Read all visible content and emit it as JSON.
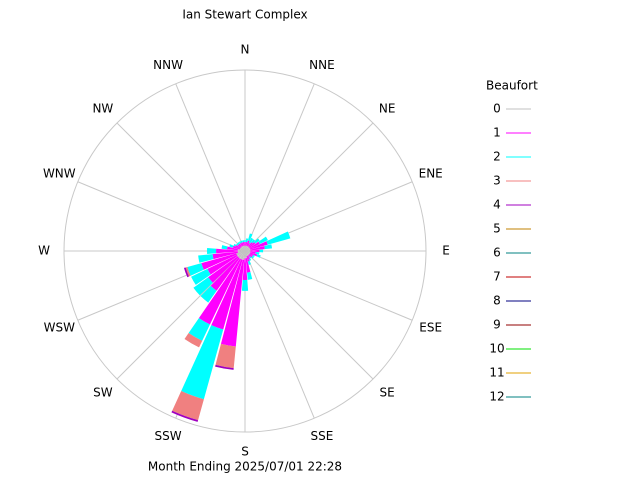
{
  "chart_data": {
    "type": "windrose",
    "title": "Ian Stewart Complex",
    "subtitle": "Month Ending 2025/07/01 22:28",
    "legend_title": "Beaufort",
    "direction_labels": [
      "N",
      "NNE",
      "NE",
      "ENE",
      "E",
      "ESE",
      "SE",
      "SSE",
      "S",
      "SSW",
      "SW",
      "WSW",
      "W",
      "WNW",
      "NW",
      "NNW"
    ],
    "rlim": [
      0,
      100
    ],
    "x": [
      0,
      10,
      20,
      30,
      40,
      50,
      60,
      70,
      80,
      90,
      100,
      110,
      120,
      130,
      140,
      150,
      160,
      170,
      180,
      190,
      200,
      210,
      220,
      230,
      240,
      250,
      260,
      270,
      280,
      290,
      300,
      310,
      320,
      330,
      340,
      350
    ],
    "series": [
      {
        "name": "0",
        "color": "#c0c0c0",
        "values": [
          3,
          3,
          3,
          3,
          3,
          3,
          3,
          3,
          3,
          3,
          3,
          3,
          3,
          3,
          3,
          3,
          3,
          4,
          4,
          5,
          5,
          5,
          5,
          5,
          5,
          5,
          4,
          4,
          4,
          3,
          3,
          3,
          3,
          3,
          3,
          3
        ]
      },
      {
        "name": "1",
        "color": "#ff00ff",
        "values": [
          2,
          2,
          3,
          2,
          3,
          4,
          6,
          10,
          8,
          5,
          3,
          4,
          2,
          2,
          1,
          2,
          3,
          8,
          12,
          48,
          40,
          40,
          22,
          20,
          18,
          20,
          14,
          12,
          6,
          4,
          3,
          2,
          2,
          2,
          2,
          2
        ]
      },
      {
        "name": "2",
        "color": "#00ffff",
        "values": [
          1,
          2,
          4,
          3,
          2,
          3,
          5,
          13,
          4,
          2,
          2,
          2,
          1,
          1,
          1,
          1,
          2,
          4,
          6,
          0,
          40,
          10,
          8,
          10,
          10,
          8,
          8,
          5,
          3,
          2,
          1,
          1,
          1,
          1,
          1,
          1
        ]
      },
      {
        "name": "3",
        "color": "#f08080",
        "values": [
          0,
          0,
          0,
          0,
          0,
          0,
          0,
          0,
          0,
          0,
          0,
          0,
          0,
          0,
          0,
          0,
          0,
          0,
          0,
          12,
          12,
          4,
          0,
          0,
          0,
          1,
          0,
          0,
          0,
          0,
          0,
          0,
          0,
          0,
          0,
          0
        ]
      },
      {
        "name": "4",
        "color": "#a000c0",
        "values": [
          0,
          0,
          0,
          0,
          0,
          0,
          0,
          0,
          0,
          0,
          0,
          0,
          0,
          0,
          0,
          0,
          0,
          0,
          0,
          1,
          1,
          0,
          0,
          0,
          0,
          1,
          0,
          0,
          0,
          0,
          0,
          0,
          0,
          0,
          0,
          0
        ]
      },
      {
        "name": "5",
        "color": "#c08000",
        "values": [
          0,
          0,
          0,
          0,
          0,
          0,
          0,
          0,
          0,
          0,
          0,
          0,
          0,
          0,
          0,
          0,
          0,
          0,
          0,
          0,
          0,
          0,
          0,
          0,
          0,
          0,
          0,
          0,
          0,
          0,
          0,
          0,
          0,
          0,
          0,
          0
        ]
      },
      {
        "name": "6",
        "color": "#008080",
        "values": [
          0,
          0,
          0,
          0,
          0,
          0,
          0,
          0,
          0,
          0,
          0,
          0,
          0,
          0,
          0,
          0,
          0,
          0,
          0,
          0,
          0,
          0,
          0,
          0,
          0,
          0,
          0,
          0,
          0,
          0,
          0,
          0,
          0,
          0,
          0,
          0
        ]
      },
      {
        "name": "7",
        "color": "#c00000",
        "values": [
          0,
          0,
          0,
          0,
          0,
          0,
          0,
          0,
          0,
          0,
          0,
          0,
          0,
          0,
          0,
          0,
          0,
          0,
          0,
          0,
          0,
          0,
          0,
          0,
          0,
          0,
          0,
          0,
          0,
          0,
          0,
          0,
          0,
          0,
          0,
          0
        ]
      },
      {
        "name": "8",
        "color": "#000080",
        "values": [
          0,
          0,
          0,
          0,
          0,
          0,
          0,
          0,
          0,
          0,
          0,
          0,
          0,
          0,
          0,
          0,
          0,
          0,
          0,
          0,
          0,
          0,
          0,
          0,
          0,
          0,
          0,
          0,
          0,
          0,
          0,
          0,
          0,
          0,
          0,
          0
        ]
      },
      {
        "name": "9",
        "color": "#900000",
        "values": [
          0,
          0,
          0,
          0,
          0,
          0,
          0,
          0,
          0,
          0,
          0,
          0,
          0,
          0,
          0,
          0,
          0,
          0,
          0,
          0,
          0,
          0,
          0,
          0,
          0,
          0,
          0,
          0,
          0,
          0,
          0,
          0,
          0,
          0,
          0,
          0
        ]
      },
      {
        "name": "10",
        "color": "#00e000",
        "values": [
          0,
          0,
          0,
          0,
          0,
          0,
          0,
          0,
          0,
          0,
          0,
          0,
          0,
          0,
          0,
          0,
          0,
          0,
          0,
          0,
          0,
          0,
          0,
          0,
          0,
          0,
          0,
          0,
          0,
          0,
          0,
          0,
          0,
          0,
          0,
          0
        ]
      },
      {
        "name": "11",
        "color": "#e0a000",
        "values": [
          0,
          0,
          0,
          0,
          0,
          0,
          0,
          0,
          0,
          0,
          0,
          0,
          0,
          0,
          0,
          0,
          0,
          0,
          0,
          0,
          0,
          0,
          0,
          0,
          0,
          0,
          0,
          0,
          0,
          0,
          0,
          0,
          0,
          0,
          0,
          0
        ]
      },
      {
        "name": "12",
        "color": "#008080",
        "values": [
          0,
          0,
          0,
          0,
          0,
          0,
          0,
          0,
          0,
          0,
          0,
          0,
          0,
          0,
          0,
          0,
          0,
          0,
          0,
          0,
          0,
          0,
          0,
          0,
          0,
          0,
          0,
          0,
          0,
          0,
          0,
          0,
          0,
          0,
          0,
          0
        ]
      }
    ]
  }
}
